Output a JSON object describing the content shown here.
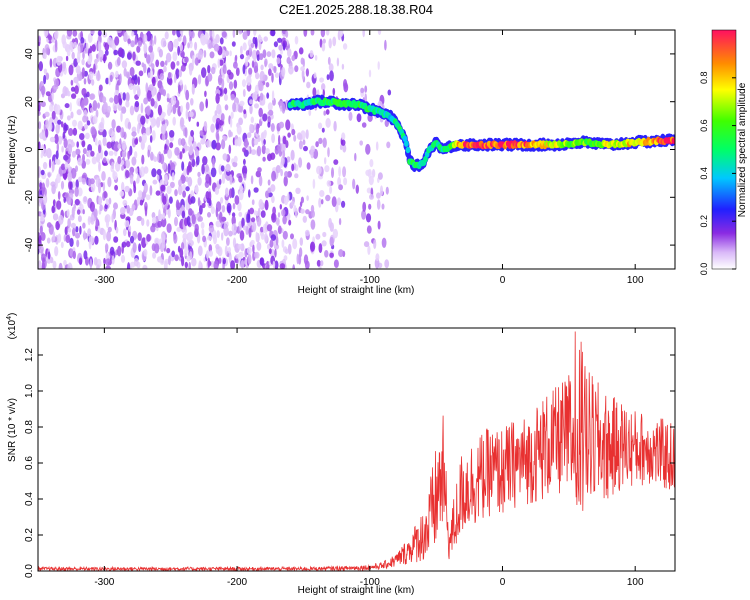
{
  "figure_title": "C2E1.2025.288.18.38.R04",
  "chart_data": [
    {
      "type": "heatmap",
      "title": "C2E1.2025.288.18.38.R04",
      "xlabel": "Height of straight line (km)",
      "ylabel": "Frequency (Hz)",
      "xlim": [
        -350,
        130
      ],
      "ylim": [
        -50,
        50
      ],
      "xticks": [
        -300,
        -200,
        -100,
        0,
        100
      ],
      "yticks": [
        -40,
        -20,
        0,
        20,
        40
      ],
      "xtick_labels": [
        "-300",
        "-200",
        "-100",
        "0",
        "100"
      ],
      "ytick_labels": [
        "-40",
        "-20",
        "0",
        "20",
        "40"
      ],
      "colorbar": {
        "label": "Normalized spectral amplitude",
        "range": [
          0,
          1
        ],
        "ticks": [
          0.0,
          0.2,
          0.4,
          0.6,
          0.8
        ],
        "tick_labels": [
          "0.0",
          "0.2",
          "0.4",
          "0.6",
          "0.8"
        ]
      },
      "ridge": {
        "x": [
          -160,
          -150,
          -140,
          -130,
          -120,
          -110,
          -100,
          -95,
          -90,
          -85,
          -80,
          -75,
          -72,
          -70,
          -65,
          -60,
          -55,
          -50,
          -45,
          -40,
          -35,
          -30,
          -20,
          0,
          20,
          40,
          60,
          80,
          100,
          130
        ],
        "freq": [
          19,
          19,
          20,
          20,
          19,
          19,
          17,
          16,
          15,
          14,
          11,
          6,
          2,
          -5,
          -7,
          -6,
          0,
          3,
          0,
          1,
          2,
          2,
          2,
          2,
          2,
          2,
          3,
          2,
          3,
          4
        ],
        "amp": [
          0.5,
          0.45,
          0.5,
          0.55,
          0.5,
          0.55,
          0.5,
          0.45,
          0.45,
          0.4,
          0.5,
          0.45,
          0.4,
          0.55,
          0.5,
          0.45,
          0.45,
          0.5,
          0.45,
          0.5,
          0.8,
          0.9,
          0.95,
          0.95,
          0.9,
          0.7,
          0.6,
          0.7,
          0.8,
          0.95
        ]
      }
    },
    {
      "type": "line",
      "xlabel": "Height of straight line (km)",
      "ylabel": "SNR (10 * v/v)",
      "scale_label": "(x10",
      "scale_exp": "4",
      "scale_close": ")",
      "xlim": [
        -350,
        130
      ],
      "ylim": [
        0,
        1.35
      ],
      "xticks": [
        -300,
        -200,
        -100,
        0,
        100
      ],
      "yticks": [
        0.0,
        0.2,
        0.4,
        0.6,
        0.8,
        1.0,
        1.2
      ],
      "xtick_labels": [
        "-300",
        "-200",
        "-100",
        "0",
        "100"
      ],
      "ytick_labels": [
        "0.0",
        "0.2",
        "0.4",
        "0.6",
        "0.8",
        "1.0",
        "1.2"
      ],
      "color": "#e83030",
      "series": [
        {
          "name": "SNR",
          "x": [
            -350,
            -300,
            -250,
            -200,
            -150,
            -120,
            -100,
            -90,
            -80,
            -70,
            -60,
            -55,
            -50,
            -45,
            -40,
            -35,
            -30,
            -20,
            -10,
            0,
            10,
            20,
            30,
            40,
            50,
            60,
            70,
            80,
            90,
            100,
            110,
            120,
            130
          ],
          "envelope": [
            0.012,
            0.012,
            0.012,
            0.012,
            0.012,
            0.015,
            0.02,
            0.03,
            0.06,
            0.12,
            0.2,
            0.25,
            0.4,
            0.55,
            0.15,
            0.3,
            0.45,
            0.5,
            0.55,
            0.55,
            0.6,
            0.62,
            0.68,
            0.72,
            0.75,
            0.72,
            0.72,
            0.68,
            0.7,
            0.68,
            0.68,
            0.65,
            0.62
          ],
          "spread": [
            0.01,
            0.01,
            0.01,
            0.01,
            0.01,
            0.012,
            0.015,
            0.02,
            0.04,
            0.08,
            0.15,
            0.25,
            0.3,
            0.35,
            0.1,
            0.2,
            0.25,
            0.25,
            0.25,
            0.25,
            0.25,
            0.25,
            0.3,
            0.3,
            0.35,
            0.45,
            0.35,
            0.3,
            0.25,
            0.22,
            0.2,
            0.2,
            0.2
          ]
        }
      ]
    }
  ]
}
